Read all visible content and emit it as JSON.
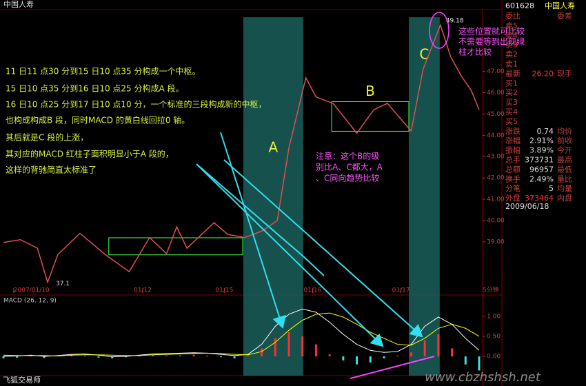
{
  "header": {
    "title": "中国人寿",
    "software": "飞狐交易师",
    "watermark": "www.cbzhshsh.net"
  },
  "chart_data": [
    {
      "type": "line",
      "period": "5分钟",
      "color": "#e05050",
      "x": [
        0,
        5,
        10,
        13,
        16,
        22.5,
        30,
        37,
        43,
        48,
        51,
        54,
        62,
        66,
        71,
        76,
        80.6,
        84,
        89,
        92,
        97,
        104,
        109,
        113,
        120,
        123.5,
        128.6,
        131.6,
        134.7,
        137.7,
        140
      ],
      "values": [
        38.97,
        39.1,
        38.7,
        37.1,
        38.4,
        39.4,
        38.4,
        37.6,
        39.2,
        38.45,
        39.7,
        38.7,
        39.9,
        39.35,
        39.2,
        39.5,
        40.0,
        43.4,
        46.7,
        45.8,
        45.5,
        44.1,
        45.2,
        45.5,
        44.2,
        47.1,
        49.18,
        47.7,
        46.8,
        46.1,
        45.2
      ],
      "xlim": [
        0,
        140
      ],
      "ylim": [
        36.6,
        49.9
      ],
      "xticks": [
        {
          "value": 3,
          "label": "2007/01/10"
        },
        {
          "value": 41,
          "label": "01/12"
        },
        {
          "value": 65,
          "label": "01/15"
        },
        {
          "value": 91,
          "label": "01/16"
        },
        {
          "value": 117,
          "label": "01/17"
        }
      ],
      "yticks": [
        {
          "value": 39,
          "label": "39.00"
        },
        {
          "value": 40,
          "label": "40.00"
        },
        {
          "value": 41,
          "label": "41.00"
        },
        {
          "value": 42,
          "label": "42.00"
        },
        {
          "value": 43,
          "label": "43.00"
        },
        {
          "value": 44,
          "label": "44.00"
        },
        {
          "value": 45,
          "label": "45.00"
        },
        {
          "value": 46,
          "label": "46.00"
        },
        {
          "value": 47,
          "label": "47.00"
        }
      ],
      "zones": [
        {
          "xlim": [
            31.0,
            70.4
          ],
          "ylim": [
            38.39,
            39.19
          ]
        },
        {
          "xlim": [
            96.6,
            119.3
          ],
          "ylim": [
            44.19,
            45.58
          ],
          "label": "B"
        }
      ],
      "segments": [
        {
          "xlim": [
            70.6,
            88.2
          ],
          "label": "A"
        },
        {
          "xlim": [
            119.3,
            128.4
          ],
          "label": "C"
        }
      ],
      "annotations": [
        "11 日11 点30 分到15 日10 点35 分构成一个中枢。",
        "15 日10 点35 分到16 日10 点25 分构成A 段。",
        "16 日10 点25 分到17 日10 点10 分，一个标准的三段构成新的中枢，",
        "也构成构成B 段，同时MACD 的黄白线回拉0 轴。",
        "其后就是C 段的上涨，",
        "其对应的MACD 红柱子面积明显小于A 段的，",
        "这样的背驰简直太标准了"
      ],
      "notes": [
        "注意：这个B的级",
        "别比A、C都大，A",
        "、C同向趋势比较"
      ],
      "notes2": [
        "这些位置就可比较",
        "不需要等到出现绿",
        "柱才比较"
      ]
    },
    {
      "type": "macd",
      "title": "MACD (26, 12, 9)",
      "x": [
        0,
        4,
        8,
        12,
        16,
        20,
        24,
        28,
        32,
        36,
        40,
        44,
        48,
        52,
        56,
        60,
        64,
        68,
        72,
        76,
        80,
        84,
        88,
        92,
        96,
        100,
        104,
        108,
        112,
        116,
        120,
        124,
        128,
        132,
        136,
        140
      ],
      "xlim": [
        0,
        140
      ],
      "ylim": [
        -0.48,
        1.46
      ],
      "yticks": [
        {
          "value": 0,
          "label": "0.00"
        },
        {
          "value": 0.5,
          "label": "0.50"
        },
        {
          "value": 1,
          "label": "1.00"
        }
      ],
      "histogram": {
        "up_color": "#ff3030",
        "down_color": "#40e0e0",
        "values": [
          -0.05,
          -0.03,
          0.02,
          -0.04,
          0.03,
          0.05,
          0.02,
          -0.03,
          -0.05,
          -0.02,
          0.03,
          0.04,
          0.02,
          0.03,
          0.04,
          0.02,
          -0.02,
          -0.05,
          0.02,
          0.2,
          0.45,
          0.6,
          0.5,
          0.3,
          0.05,
          -0.1,
          -0.2,
          -0.15,
          -0.05,
          0.02,
          0.1,
          0.4,
          0.55,
          0.2,
          -0.2,
          -0.35
        ]
      },
      "series": [
        {
          "color": "#ffffff",
          "values": [
            0,
            0.01,
            0.03,
            0,
            0.02,
            0.05,
            0.06,
            0.03,
            -0.01,
            0,
            0.03,
            0.06,
            0.07,
            0.08,
            0.09,
            0.08,
            0.05,
            0.02,
            0.05,
            0.3,
            0.75,
            1.05,
            1.18,
            1.1,
            0.85,
            0.55,
            0.3,
            0.15,
            0.1,
            0.12,
            0.3,
            0.75,
            0.98,
            0.8,
            0.45,
            0.15
          ]
        },
        {
          "color": "#ffff00",
          "values": [
            0.03,
            0.02,
            0.02,
            0.02,
            0.01,
            0.03,
            0.04,
            0.04,
            0.03,
            0.02,
            0.02,
            0.04,
            0.05,
            0.06,
            0.07,
            0.08,
            0.07,
            0.05,
            0.04,
            0.12,
            0.35,
            0.65,
            0.9,
            1.05,
            1.08,
            0.98,
            0.8,
            0.6,
            0.45,
            0.3,
            0.28,
            0.45,
            0.7,
            0.8,
            0.7,
            0.5
          ]
        }
      ]
    }
  ],
  "sidebar": {
    "code": "601628",
    "name": "中国人寿",
    "date": "2009/06/18",
    "rows": [
      {
        "label": "委比",
        "label2": "委差"
      },
      {
        "label": "卖5"
      },
      {
        "label": "卖4"
      },
      {
        "label": "卖3"
      },
      {
        "label": "卖2"
      },
      {
        "label": "卖1"
      },
      {
        "label": "最新",
        "value": "26.20",
        "label2": "现手"
      },
      {
        "label": "买1"
      },
      {
        "label": "买2"
      },
      {
        "label": "买3"
      },
      {
        "label": "买4"
      },
      {
        "label": "买5"
      },
      {
        "label": "涨跌",
        "value": "0.74",
        "label2": "均价"
      },
      {
        "label": "涨幅",
        "value": "2.91%",
        "label2": "前收"
      },
      {
        "label": "振幅",
        "value": "3.89%",
        "label2": "今开"
      },
      {
        "label": "总手",
        "value": "373731",
        "label2": "最高"
      },
      {
        "label": "总额",
        "value": "96957",
        "label2": "最低"
      },
      {
        "label": "换手",
        "value": "2.49%",
        "label2": "量比"
      },
      {
        "label": "分笔",
        "value": "5",
        "label2": "均量"
      },
      {
        "label": "外盘",
        "value": "373464",
        "label2": "内盘"
      }
    ]
  }
}
